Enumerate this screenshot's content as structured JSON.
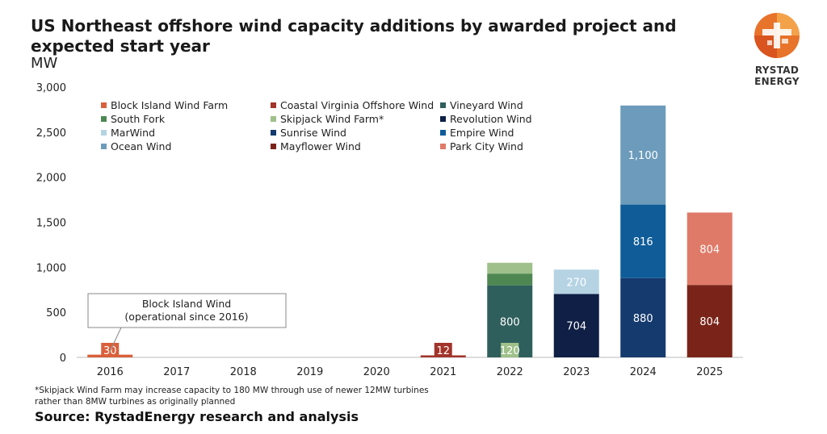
{
  "header": {
    "title": "US Northeast offshore wind capacity additions by awarded project and expected start year",
    "units": "MW"
  },
  "logo": {
    "text": "RYSTAD ENERGY",
    "colors": [
      "#e8732a",
      "#f4a24a",
      "#d9541f"
    ]
  },
  "annotation": {
    "line1": "Block Island Wind",
    "line2": "(operational since 2016)"
  },
  "footnote": "*Skipjack Wind Farm may increase capacity to 180 MW through use of newer 12MW turbines rather than 8MW turbines as originally planned",
  "source": "Source: RystadEnergy research and analysis",
  "chart_data": {
    "type": "bar",
    "stacked": true,
    "categories": [
      "2016",
      "2017",
      "2018",
      "2019",
      "2020",
      "2021",
      "2022",
      "2023",
      "2024",
      "2025"
    ],
    "ylim": [
      0,
      3000
    ],
    "yticks": [
      0,
      500,
      1000,
      1500,
      2000,
      2500,
      3000
    ],
    "ytick_labels": [
      "0",
      "500",
      "1,000",
      "1,500",
      "2,000",
      "2,500",
      "3,000"
    ],
    "legend_position": "top-left",
    "series": [
      {
        "name": "Block Island Wind Farm",
        "color": "#d9603b",
        "values": [
          30,
          0,
          0,
          0,
          0,
          0,
          0,
          0,
          0,
          0
        ],
        "labels": [
          "30",
          "",
          "",
          "",
          "",
          "",
          "",
          "",
          "",
          ""
        ]
      },
      {
        "name": "Coastal Virginia Offshore Wind",
        "color": "#a2342a",
        "values": [
          0,
          0,
          0,
          0,
          0,
          12,
          0,
          0,
          0,
          0
        ],
        "labels": [
          "",
          "",
          "",
          "",
          "",
          "12",
          "",
          "",
          "",
          ""
        ]
      },
      {
        "name": "Vineyard Wind",
        "color": "#2f5f5c",
        "values": [
          0,
          0,
          0,
          0,
          0,
          0,
          800,
          0,
          0,
          0
        ],
        "labels": [
          "",
          "",
          "",
          "",
          "",
          "",
          "800",
          "",
          "",
          ""
        ]
      },
      {
        "name": "South Fork",
        "color": "#4e8752",
        "values": [
          0,
          0,
          0,
          0,
          0,
          0,
          130,
          0,
          0,
          0
        ],
        "labels": [
          "",
          "",
          "",
          "",
          "",
          "",
          "130",
          "",
          "",
          ""
        ]
      },
      {
        "name": "Skipjack Wind Farm*",
        "color": "#9fc08a",
        "values": [
          0,
          0,
          0,
          0,
          0,
          0,
          120,
          0,
          0,
          0
        ],
        "labels": [
          "",
          "",
          "",
          "",
          "",
          "",
          "120",
          "",
          "",
          ""
        ]
      },
      {
        "name": "Revolution Wind",
        "color": "#0f1f45",
        "values": [
          0,
          0,
          0,
          0,
          0,
          0,
          0,
          704,
          0,
          0
        ],
        "labels": [
          "",
          "",
          "",
          "",
          "",
          "",
          "",
          "704",
          "",
          ""
        ]
      },
      {
        "name": "MarWind",
        "color": "#b5d3e3",
        "values": [
          0,
          0,
          0,
          0,
          0,
          0,
          0,
          270,
          0,
          0
        ],
        "labels": [
          "",
          "",
          "",
          "",
          "",
          "",
          "",
          "270",
          "",
          ""
        ]
      },
      {
        "name": "Sunrise Wind",
        "color": "#153a6e",
        "values": [
          0,
          0,
          0,
          0,
          0,
          0,
          0,
          0,
          880,
          0
        ],
        "labels": [
          "",
          "",
          "",
          "",
          "",
          "",
          "",
          "",
          "880",
          ""
        ]
      },
      {
        "name": "Empire Wind",
        "color": "#0f5c99",
        "values": [
          0,
          0,
          0,
          0,
          0,
          0,
          0,
          0,
          816,
          0
        ],
        "labels": [
          "",
          "",
          "",
          "",
          "",
          "",
          "",
          "",
          "816",
          ""
        ]
      },
      {
        "name": "Ocean Wind",
        "color": "#6c9bbb",
        "values": [
          0,
          0,
          0,
          0,
          0,
          0,
          0,
          0,
          1100,
          0
        ],
        "labels": [
          "",
          "",
          "",
          "",
          "",
          "",
          "",
          "",
          "1,100",
          ""
        ]
      },
      {
        "name": "Mayflower Wind",
        "color": "#7a2419",
        "values": [
          0,
          0,
          0,
          0,
          0,
          0,
          0,
          0,
          0,
          804
        ],
        "labels": [
          "",
          "",
          "",
          "",
          "",
          "",
          "",
          "",
          "",
          "804"
        ]
      },
      {
        "name": "Park City Wind",
        "color": "#e07a68",
        "values": [
          0,
          0,
          0,
          0,
          0,
          0,
          0,
          0,
          0,
          804
        ],
        "labels": [
          "",
          "",
          "",
          "",
          "",
          "",
          "",
          "",
          "",
          "804"
        ]
      }
    ]
  }
}
